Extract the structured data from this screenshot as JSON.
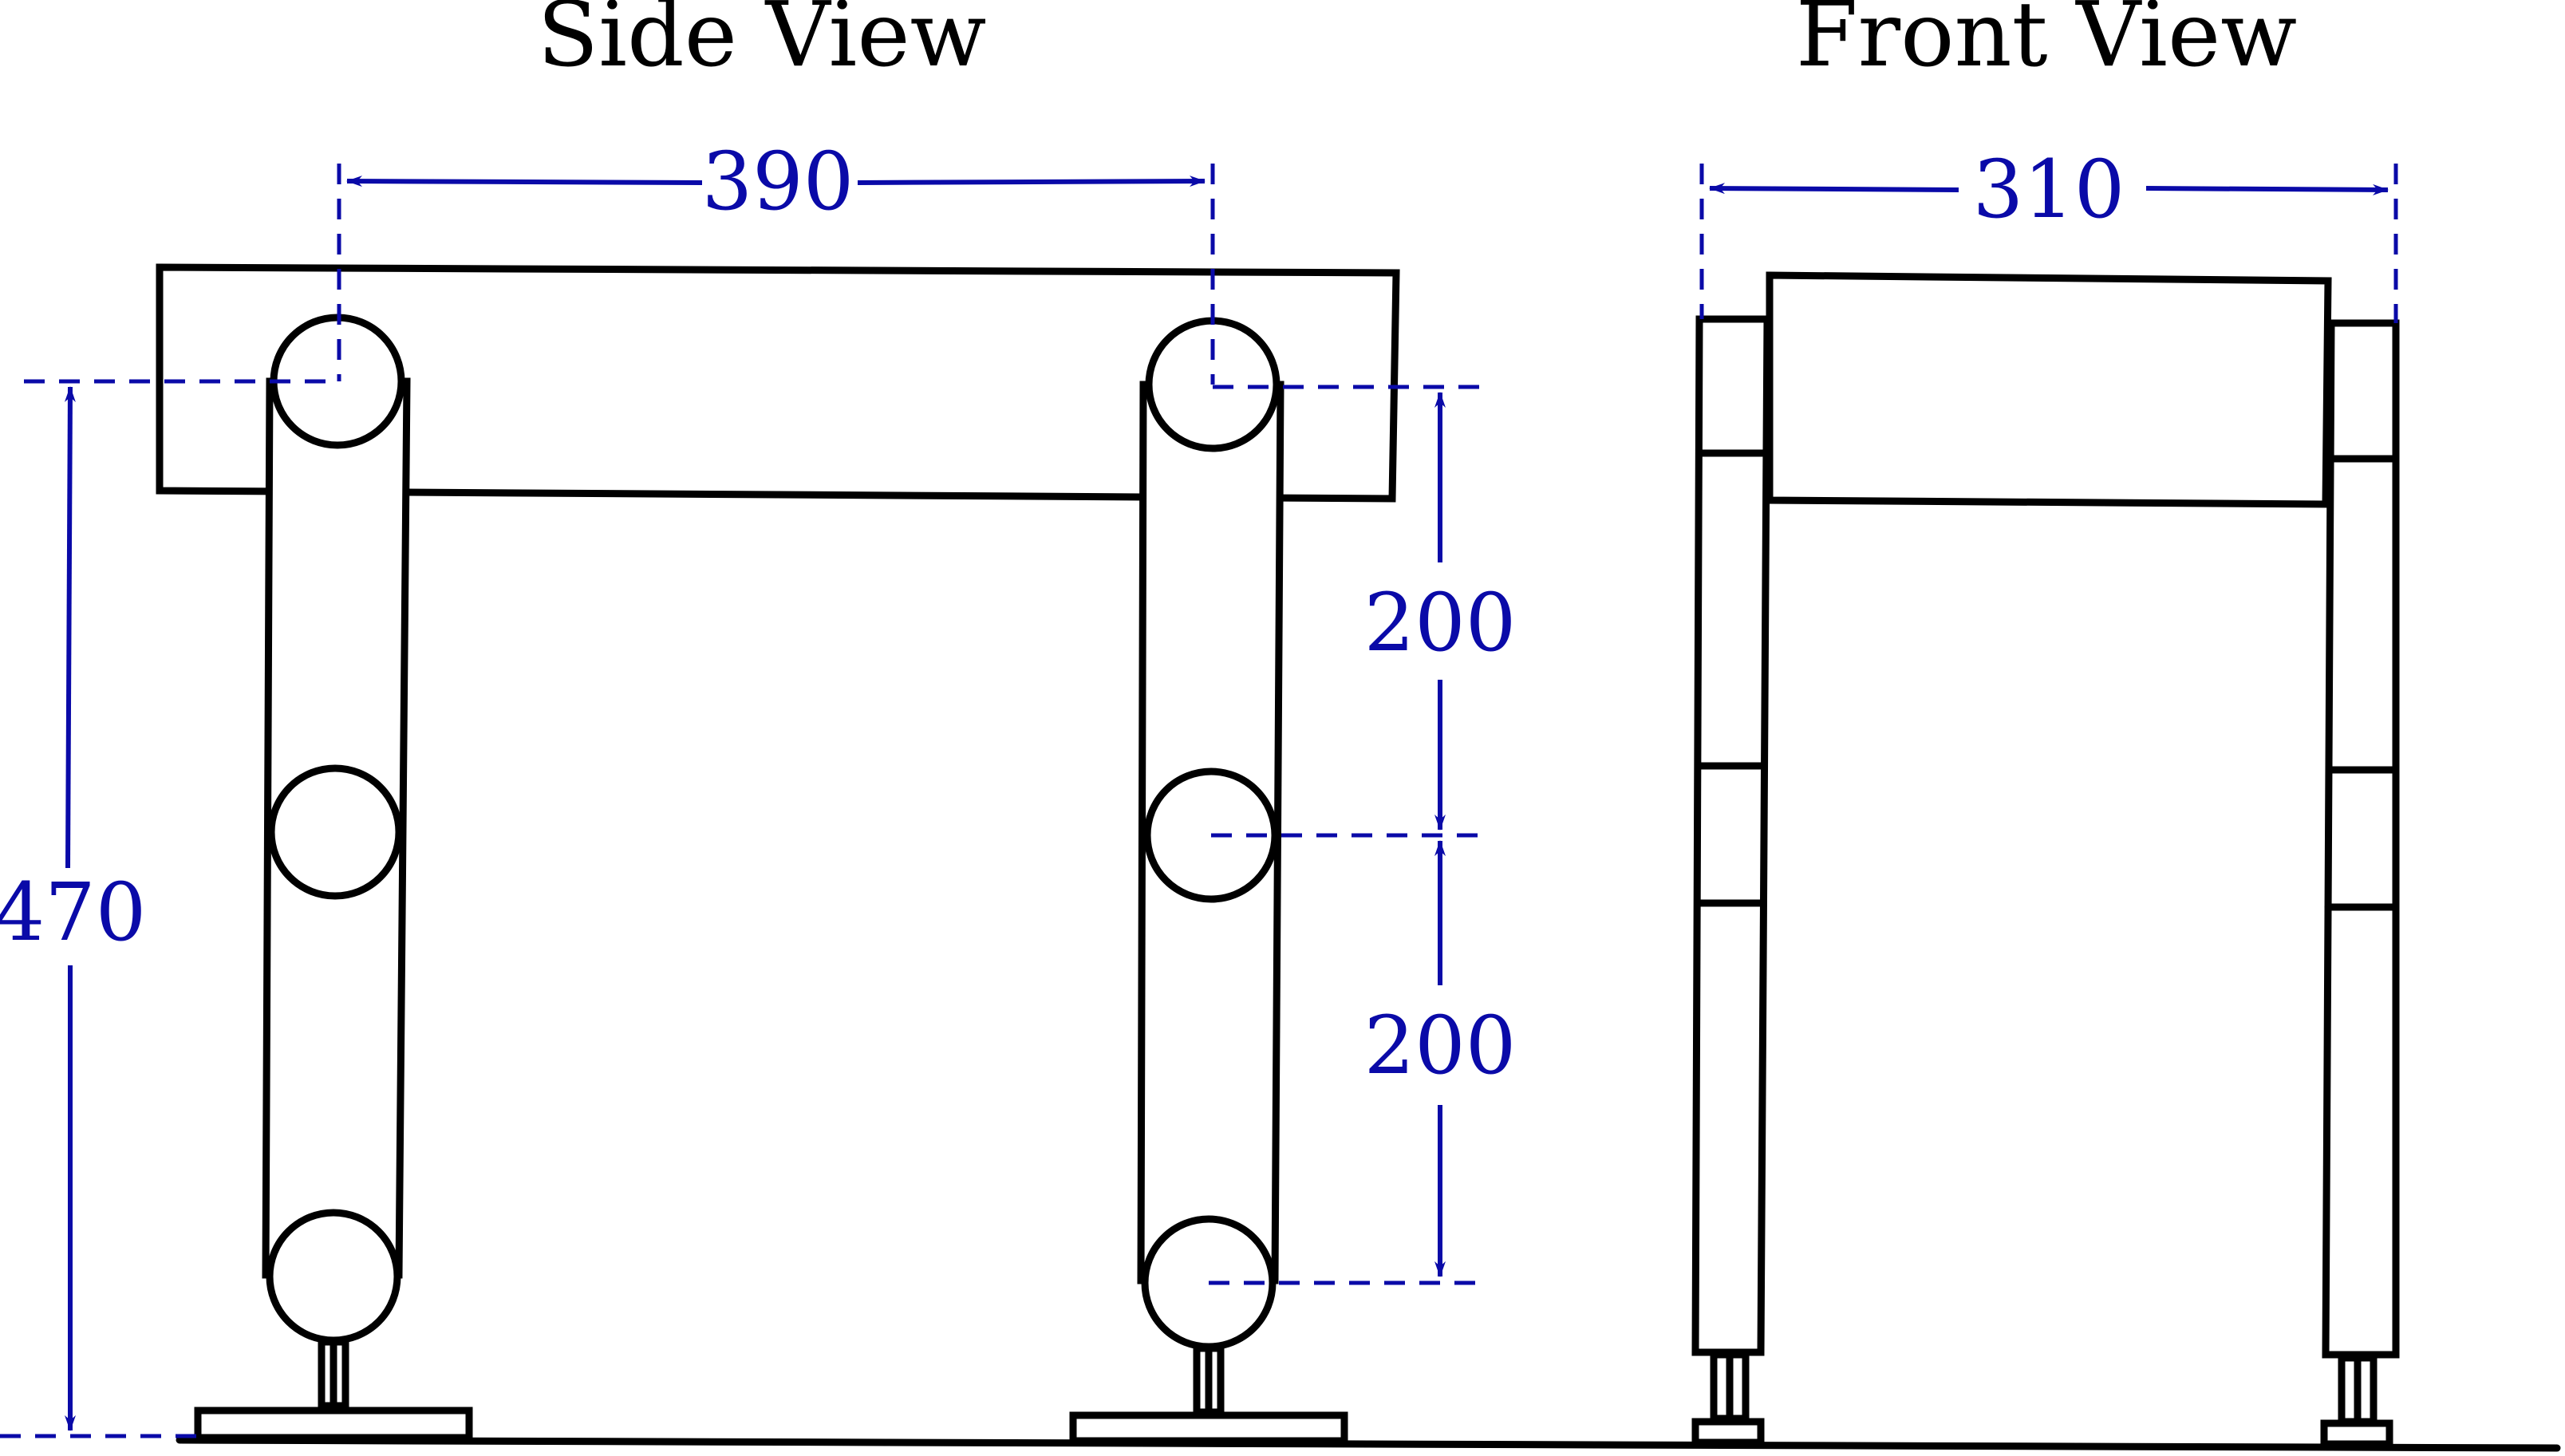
{
  "titles": {
    "side": "Side View",
    "front": "Front View"
  },
  "dimensions": {
    "side_width": "390",
    "side_height": "470",
    "upper_spacing": "200",
    "lower_spacing": "200",
    "front_width": "310"
  },
  "colors": {
    "dimension": "#0a0aa8",
    "outline": "#000000"
  }
}
